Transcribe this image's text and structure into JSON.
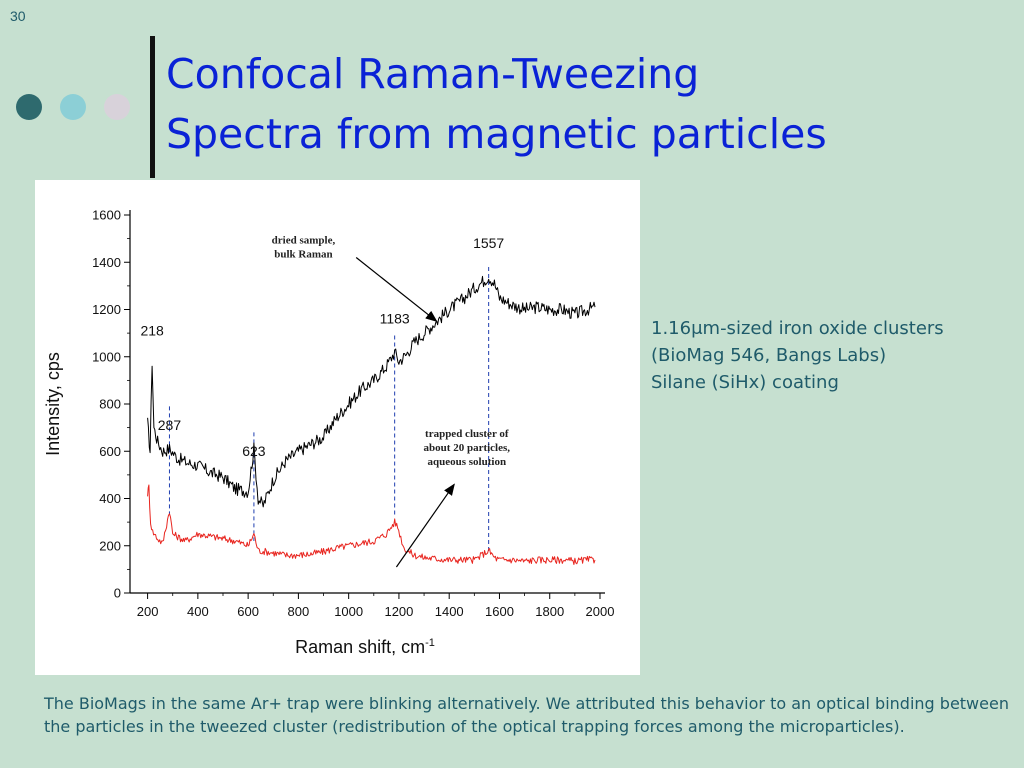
{
  "slide": {
    "number": "30",
    "title_lines": [
      "Confocal Raman-Tweezing",
      "Spectra from magnetic particles"
    ],
    "side_note_lines": [
      "1.16μm-sized iron oxide clusters",
      "(BioMag 546, Bangs Labs)",
      "Silane (SiHx) coating"
    ],
    "caption": "The BioMags in the same Ar+ trap  were blinking alternatively. We attributed this behavior to an optical binding between the particles in the tweezed cluster (redistribution of the optical trapping forces among the microparticles).",
    "colors": {
      "background": "#c6e0d0",
      "title": "#0a22d6",
      "body_text": "#1f5b6a",
      "dot_dark": "#2e6a6e",
      "dot_light": "#8ccfd6",
      "dot_pale": "#d8d2da"
    },
    "decor_icons": [
      "dot-dark-icon",
      "dot-light-icon",
      "dot-pale-icon"
    ]
  },
  "chart_data": {
    "type": "line",
    "xlabel": "Raman shift, cm",
    "xlabel_sup": "-1",
    "ylabel": "Intensity, cps",
    "xlim": [
      130,
      2000
    ],
    "ylim": [
      0,
      1600
    ],
    "xticks": [
      200,
      400,
      600,
      800,
      1000,
      1200,
      1400,
      1600,
      1800,
      2000
    ],
    "yticks": [
      0,
      200,
      400,
      600,
      800,
      1000,
      1200,
      1400,
      1600
    ],
    "grid": false,
    "series": [
      {
        "color": "#000000",
        "x": [
          200,
          210,
          218,
          225,
          240,
          260,
          287,
          320,
          360,
          400,
          450,
          500,
          550,
          600,
          623,
          640,
          660,
          700,
          750,
          800,
          850,
          900,
          950,
          1000,
          1050,
          1100,
          1150,
          1183,
          1200,
          1230,
          1260,
          1300,
          1350,
          1400,
          1450,
          1500,
          1557,
          1580,
          1600,
          1650,
          1700,
          1750,
          1800,
          1850,
          1900,
          1950,
          1980
        ],
        "y": [
          720,
          600,
          980,
          700,
          640,
          600,
          610,
          570,
          550,
          540,
          510,
          490,
          440,
          430,
          610,
          400,
          370,
          480,
          560,
          600,
          630,
          660,
          740,
          800,
          860,
          900,
          960,
          1020,
          980,
          1010,
          1060,
          1100,
          1150,
          1200,
          1240,
          1290,
          1340,
          1310,
          1250,
          1220,
          1200,
          1210,
          1200,
          1200,
          1180,
          1200,
          1210
        ]
      },
      {
        "color": "#e8251f",
        "x": [
          200,
          205,
          212,
          220,
          240,
          260,
          287,
          300,
          350,
          400,
          450,
          500,
          550,
          600,
          623,
          640,
          700,
          750,
          800,
          850,
          900,
          950,
          1000,
          1050,
          1100,
          1150,
          1183,
          1195,
          1220,
          1260,
          1300,
          1350,
          1400,
          1450,
          1500,
          1557,
          1580,
          1600,
          1650,
          1700,
          1750,
          1800,
          1850,
          1900,
          1950,
          1980
        ],
        "y": [
          420,
          450,
          300,
          260,
          230,
          210,
          350,
          250,
          220,
          250,
          240,
          230,
          220,
          200,
          250,
          180,
          170,
          160,
          160,
          165,
          175,
          190,
          200,
          210,
          220,
          250,
          300,
          280,
          190,
          160,
          150,
          145,
          140,
          140,
          140,
          180,
          150,
          140,
          140,
          135,
          140,
          140,
          140,
          135,
          140,
          140
        ]
      }
    ],
    "peak_labels": [
      {
        "text": "218",
        "x": 218,
        "y": 1090
      },
      {
        "text": "287",
        "x": 287,
        "y": 690
      },
      {
        "text": "623",
        "x": 623,
        "y": 580
      },
      {
        "text": "1183",
        "x": 1183,
        "y": 1140
      },
      {
        "text": "1557",
        "x": 1557,
        "y": 1460
      }
    ],
    "peak_lines": [
      {
        "x": 287,
        "y_top": 790,
        "y_bottom": 330
      },
      {
        "x": 623,
        "y_top": 680,
        "y_bottom": 220
      },
      {
        "x": 1183,
        "y_top": 1090,
        "y_bottom": 320
      },
      {
        "x": 1557,
        "y_top": 1380,
        "y_bottom": 170
      }
    ],
    "annotations": [
      {
        "lines": [
          "dried sample,",
          "bulk Raman"
        ],
        "x": 820,
        "y": 1480,
        "arrow_from": [
          1030,
          1420
        ],
        "arrow_to": [
          1350,
          1150
        ]
      },
      {
        "lines": [
          "trapped cluster of",
          "about 20 particles,",
          "aqueous solution"
        ],
        "x": 1470,
        "y": 660,
        "arrow_from": [
          1190,
          110
        ],
        "arrow_to": [
          1420,
          460
        ]
      }
    ]
  }
}
